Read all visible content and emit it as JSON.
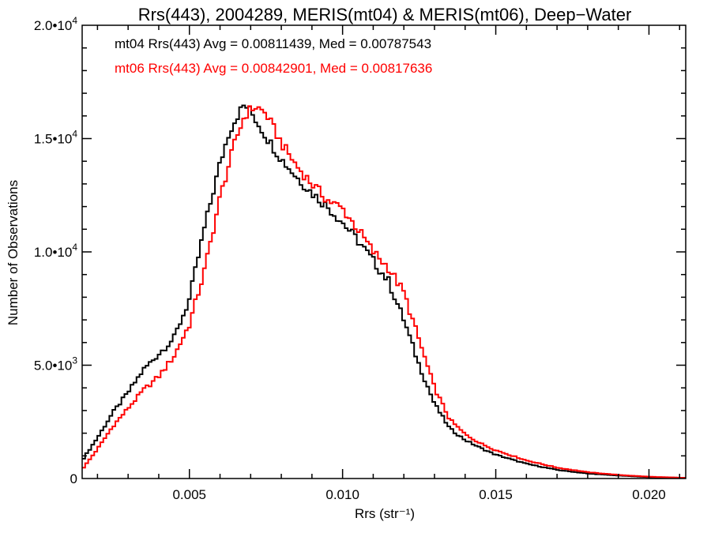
{
  "chart_data": {
    "type": "line",
    "title": "Rrs(443), 2004289, MERIS(mt04) & MERIS(mt06), Deep−Water",
    "xlabel": "Rrs (str⁻¹)",
    "ylabel": "Number of Observations",
    "xlim": [
      0.0015,
      0.0212
    ],
    "ylim": [
      0,
      20000
    ],
    "x_ticks": [
      {
        "value": 0.005,
        "label": "0.005"
      },
      {
        "value": 0.01,
        "label": "0.010"
      },
      {
        "value": 0.015,
        "label": "0.015"
      },
      {
        "value": 0.02,
        "label": "0.020"
      }
    ],
    "y_ticks": [
      {
        "value": 0,
        "mant": "0",
        "exp": ""
      },
      {
        "value": 5000,
        "mant": "5.0•10",
        "exp": "3"
      },
      {
        "value": 10000,
        "mant": "1.0•10",
        "exp": "4"
      },
      {
        "value": 15000,
        "mant": "1.5•10",
        "exp": "4"
      },
      {
        "value": 20000,
        "mant": "2.0•10",
        "exp": "4"
      }
    ],
    "annotations": [
      {
        "text": "mt04 Rrs(443) Avg = 0.00811439, Med = 0.00787543",
        "color": "#000000"
      },
      {
        "text": "mt06 Rrs(443) Avg = 0.00842901, Med = 0.00817636",
        "color": "#ff0000"
      }
    ],
    "series": [
      {
        "color": "#000000",
        "x": [
          0.0015,
          0.002,
          0.0025,
          0.003,
          0.0035,
          0.004,
          0.0045,
          0.005,
          0.0055,
          0.006,
          0.0063,
          0.0066,
          0.0068,
          0.007,
          0.0075,
          0.008,
          0.0085,
          0.009,
          0.0095,
          0.01,
          0.0105,
          0.011,
          0.0115,
          0.012,
          0.0125,
          0.013,
          0.0135,
          0.014,
          0.0145,
          0.015,
          0.016,
          0.017,
          0.018,
          0.019,
          0.02,
          0.0212
        ],
        "y": [
          800,
          1800,
          2900,
          3800,
          4800,
          5500,
          6200,
          7900,
          11100,
          13900,
          15300,
          16100,
          16500,
          16200,
          15100,
          14100,
          13300,
          12600,
          12000,
          11300,
          10500,
          9600,
          8700,
          7000,
          5000,
          3300,
          2200,
          1700,
          1350,
          1050,
          650,
          380,
          220,
          130,
          60,
          30
        ]
      },
      {
        "color": "#ff0000",
        "x": [
          0.0015,
          0.002,
          0.0025,
          0.003,
          0.0035,
          0.004,
          0.0045,
          0.005,
          0.0055,
          0.006,
          0.0065,
          0.0068,
          0.007,
          0.0072,
          0.0075,
          0.008,
          0.0085,
          0.009,
          0.0095,
          0.01,
          0.0105,
          0.011,
          0.0115,
          0.012,
          0.0125,
          0.013,
          0.0135,
          0.014,
          0.0145,
          0.015,
          0.016,
          0.017,
          0.018,
          0.019,
          0.02,
          0.0212
        ],
        "y": [
          400,
          1300,
          2300,
          3100,
          3900,
          4500,
          5400,
          6800,
          9200,
          12400,
          14900,
          16000,
          16300,
          16400,
          16100,
          14800,
          13800,
          13000,
          12300,
          11900,
          11000,
          10000,
          9300,
          8200,
          6100,
          4000,
          2600,
          1950,
          1550,
          1250,
          800,
          480,
          280,
          160,
          80,
          30
        ]
      }
    ]
  }
}
